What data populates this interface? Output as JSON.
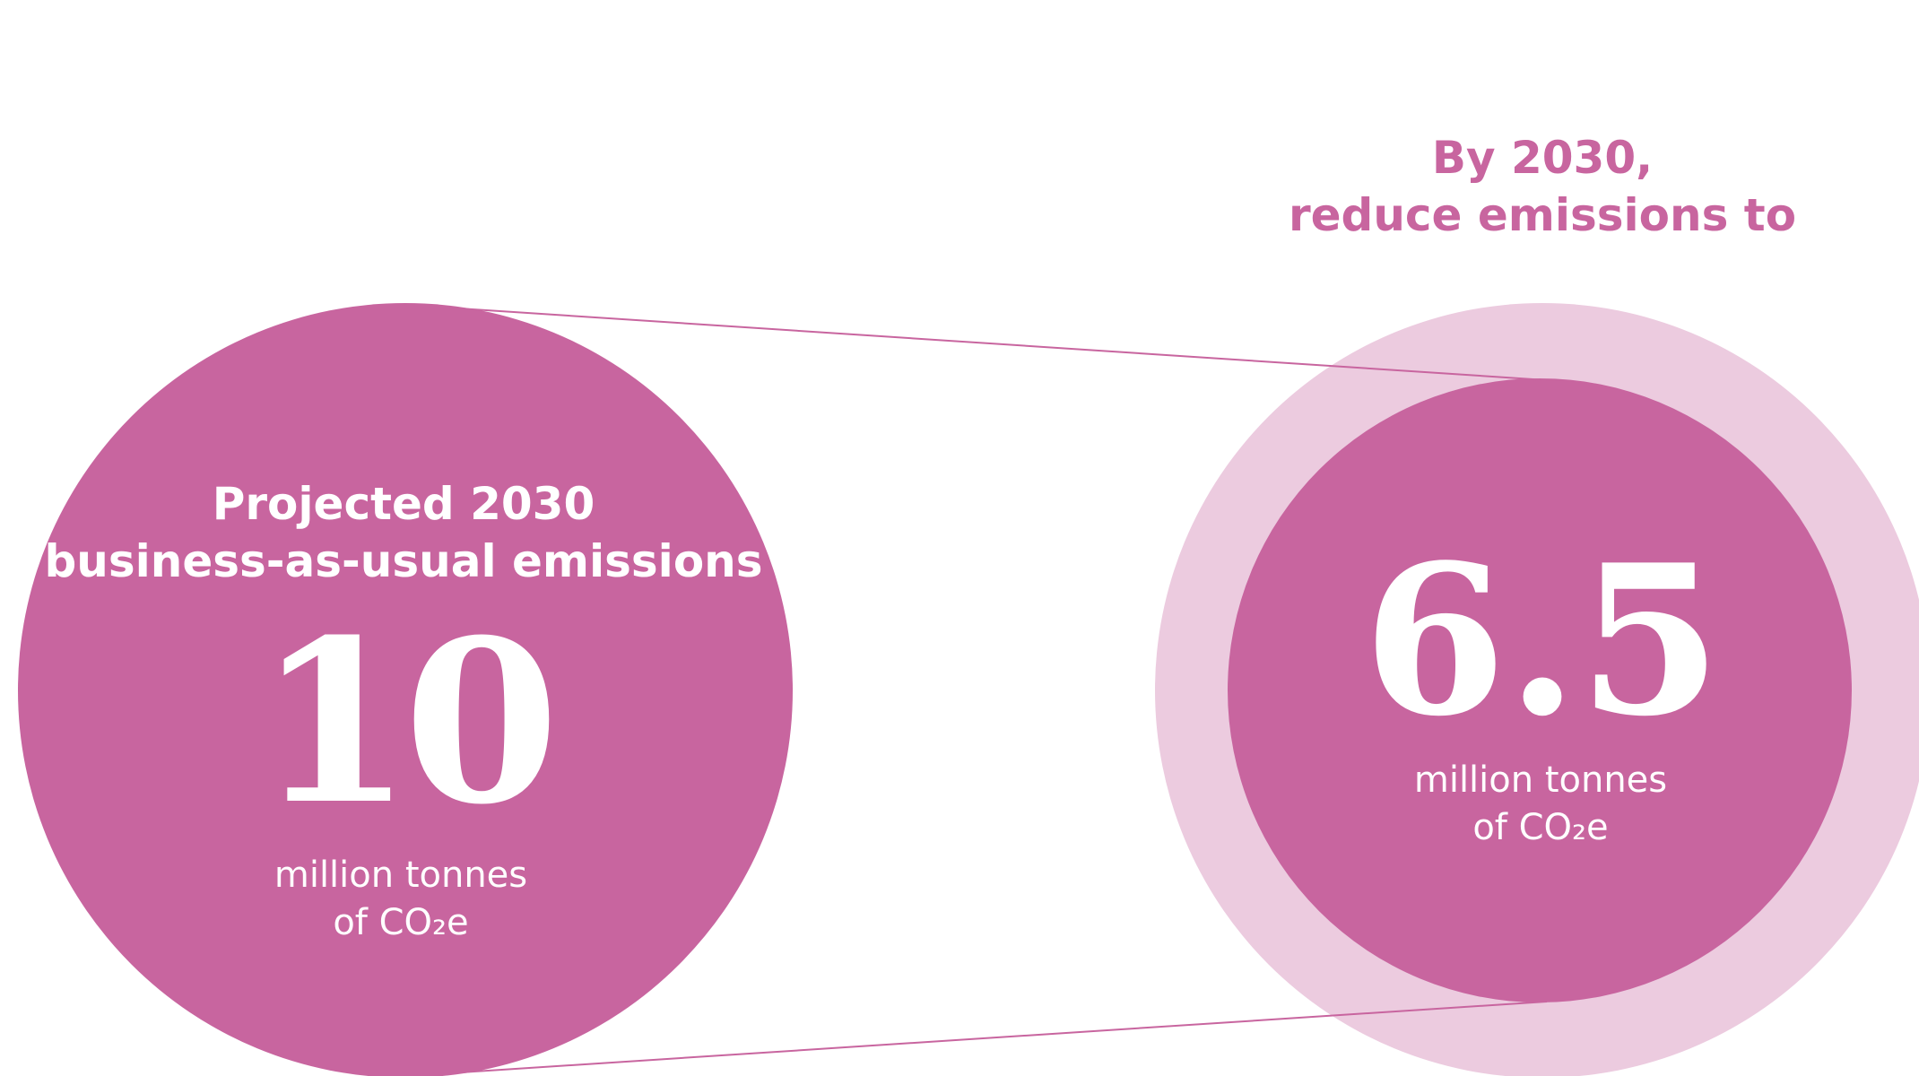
{
  "colors": {
    "primary": "#c8659f",
    "light": "#eccbdf",
    "text_on_primary": "#ffffff"
  },
  "target": {
    "line1": "By 2030,",
    "line2": "reduce emissions to"
  },
  "projected": {
    "line1": "Projected 2030",
    "line2": "business-as-usual emissions",
    "value": "10",
    "unit_line1": "million tonnes",
    "unit_line2": "of CO₂e"
  },
  "reduced": {
    "value": "6.5",
    "unit_line1": "million tonnes",
    "unit_line2": "of CO₂e"
  }
}
